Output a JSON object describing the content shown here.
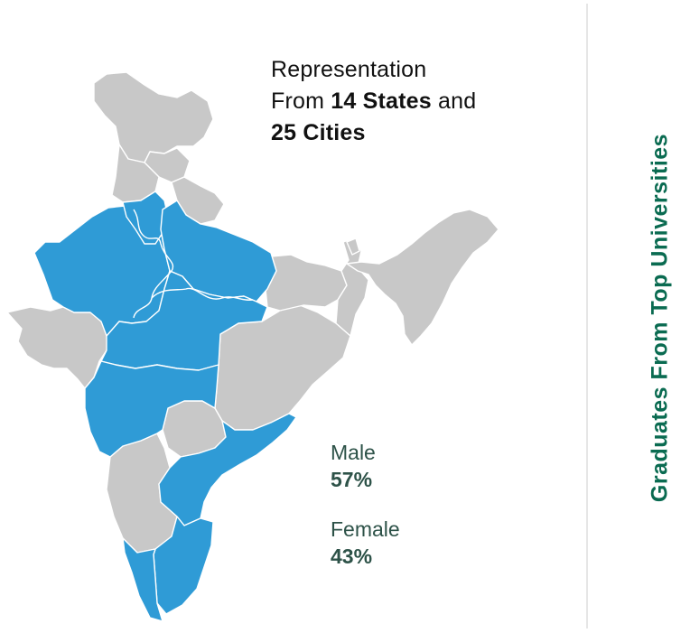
{
  "headline": {
    "line1": "Representation",
    "prefix": "From ",
    "states": "14 States",
    "conj": " and",
    "cities": "25 Cities"
  },
  "stats": {
    "male_label": "Male",
    "male_value": "57%",
    "female_label": "Female",
    "female_value": "43%"
  },
  "side_title": "Graduates From Top Universities",
  "colors": {
    "represented": "#2f9bd6",
    "other": "#c8c8c8",
    "stat_text": "#2d5248",
    "side_title": "#0a6b51"
  }
}
